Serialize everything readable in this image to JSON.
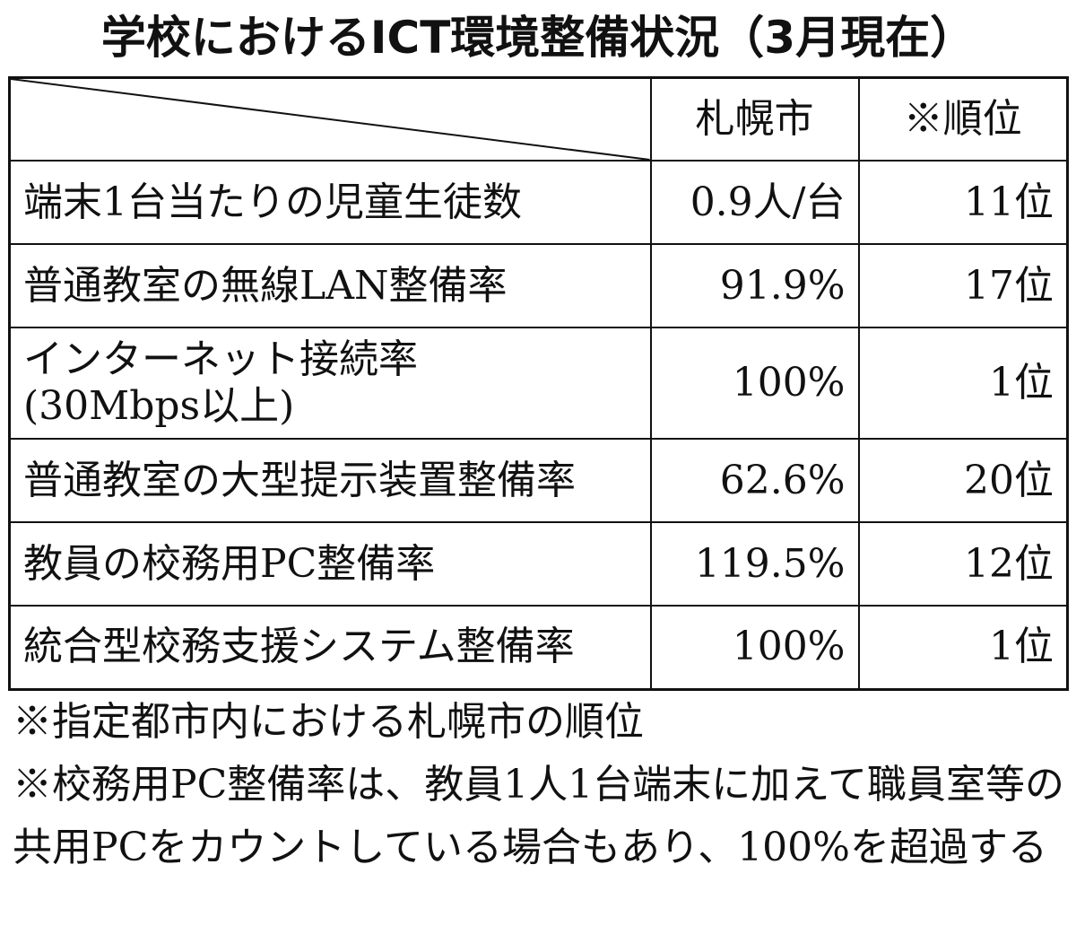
{
  "title": "学校におけるICT環境整備状況（3月現在）",
  "table": {
    "headers": [
      "札幌市",
      "※順位"
    ],
    "rows": [
      {
        "item": "端末1台当たりの児童生徒数",
        "item_sub": "",
        "sapporo": "0.9人/台",
        "rank": "11位"
      },
      {
        "item": "普通教室の無線LAN整備率",
        "item_sub": "",
        "sapporo": "91.9%",
        "rank": "17位"
      },
      {
        "item": "インターネット接続率",
        "item_sub": "(30Mbps以上)",
        "sapporo": "100%",
        "rank": "1位"
      },
      {
        "item": "普通教室の大型提示装置整備率",
        "item_sub": "",
        "sapporo": "62.6%",
        "rank": "20位"
      },
      {
        "item": "教員の校務用PC整備率",
        "item_sub": "",
        "sapporo": "119.5%",
        "rank": "12位"
      },
      {
        "item": "統合型校務支援システム整備率",
        "item_sub": "",
        "sapporo": "100%",
        "rank": "1位"
      }
    ]
  },
  "notes": [
    "※指定都市内における札幌市の順位",
    "※校務用PC整備率は、教員1人1台端末に加えて職員室等の共用PCをカウントしている場合もあり、100%を超過する"
  ]
}
